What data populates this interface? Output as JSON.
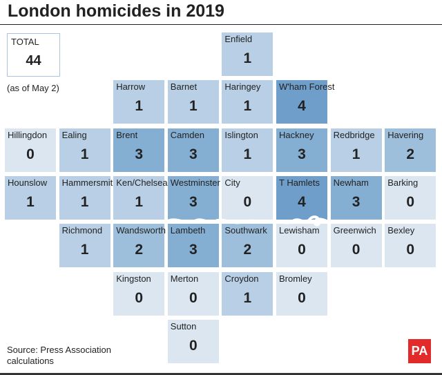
{
  "title": "London homicides in 2019",
  "total": {
    "label": "TOTAL",
    "value": "44",
    "as_of": "(as of May 2)"
  },
  "source": "Source: Press Association calculations",
  "logo": "PA",
  "colors": {
    "0": "#dbe6f1",
    "1": "#b8cfe5",
    "2": "#9ebfdb",
    "3": "#84aed2",
    "4": "#6e9ec9",
    "river": "#ffffff"
  },
  "chart_data": {
    "type": "heatmap",
    "title": "London homicides in 2019",
    "boroughs": [
      {
        "name": "Enfield",
        "value": 1
      },
      {
        "name": "Harrow",
        "value": 1
      },
      {
        "name": "Barnet",
        "value": 1
      },
      {
        "name": "Haringey",
        "value": 1
      },
      {
        "name": "W'ham Forest",
        "value": 4
      },
      {
        "name": "Hillingdon",
        "value": 0
      },
      {
        "name": "Ealing",
        "value": 1
      },
      {
        "name": "Brent",
        "value": 3
      },
      {
        "name": "Camden",
        "value": 3
      },
      {
        "name": "Islington",
        "value": 1
      },
      {
        "name": "Hackney",
        "value": 3
      },
      {
        "name": "Redbridge",
        "value": 1
      },
      {
        "name": "Havering",
        "value": 2
      },
      {
        "name": "Hounslow",
        "value": 1
      },
      {
        "name": "Hammersmith",
        "value": 1
      },
      {
        "name": "Ken/Chelsea",
        "value": 1
      },
      {
        "name": "Westminster",
        "value": 3
      },
      {
        "name": "City",
        "value": 0
      },
      {
        "name": "T Hamlets",
        "value": 4
      },
      {
        "name": "Newham",
        "value": 3
      },
      {
        "name": "Barking",
        "value": 0
      },
      {
        "name": "Richmond",
        "value": 1
      },
      {
        "name": "Wandsworth",
        "value": 2
      },
      {
        "name": "Lambeth",
        "value": 3
      },
      {
        "name": "Southwark",
        "value": 2
      },
      {
        "name": "Lewisham",
        "value": 0
      },
      {
        "name": "Greenwich",
        "value": 0
      },
      {
        "name": "Bexley",
        "value": 0
      },
      {
        "name": "Kingston",
        "value": 0
      },
      {
        "name": "Merton",
        "value": 0
      },
      {
        "name": "Croydon",
        "value": 1
      },
      {
        "name": "Bromley",
        "value": 0
      },
      {
        "name": "Sutton",
        "value": 0
      }
    ]
  }
}
